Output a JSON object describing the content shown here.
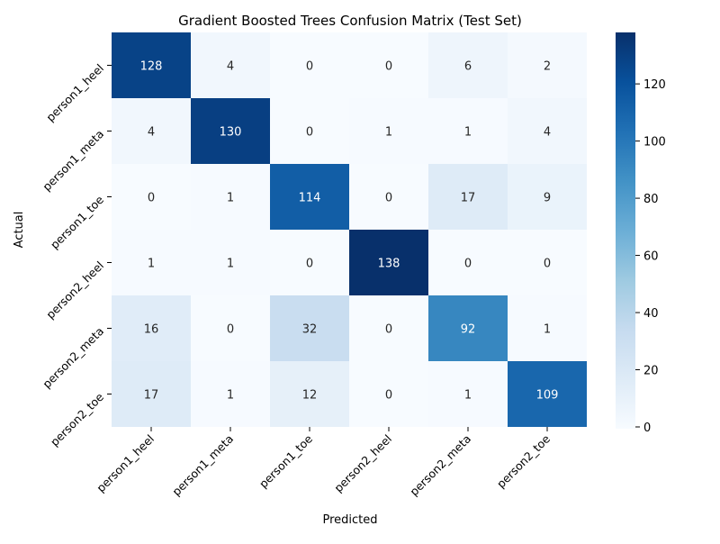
{
  "chart_data": {
    "type": "heatmap",
    "title": "Gradient Boosted Trees Confusion Matrix (Test Set)",
    "xlabel": "Predicted",
    "ylabel": "Actual",
    "x_categories": [
      "person1_heel",
      "person1_meta",
      "person1_toe",
      "person2_heel",
      "person2_meta",
      "person2_toe"
    ],
    "y_categories": [
      "person1_heel",
      "person1_meta",
      "person1_toe",
      "person2_heel",
      "person2_meta",
      "person2_toe"
    ],
    "values": [
      [
        128,
        4,
        0,
        0,
        6,
        2
      ],
      [
        4,
        130,
        0,
        1,
        1,
        4
      ],
      [
        0,
        1,
        114,
        0,
        17,
        9
      ],
      [
        1,
        1,
        0,
        138,
        0,
        0
      ],
      [
        16,
        0,
        32,
        0,
        92,
        1
      ],
      [
        17,
        1,
        12,
        0,
        1,
        109
      ]
    ],
    "colormap": "Blues",
    "color_range": [
      0,
      138
    ],
    "colorbar_ticks": [
      0,
      20,
      40,
      60,
      80,
      100,
      120
    ],
    "grid": false
  }
}
